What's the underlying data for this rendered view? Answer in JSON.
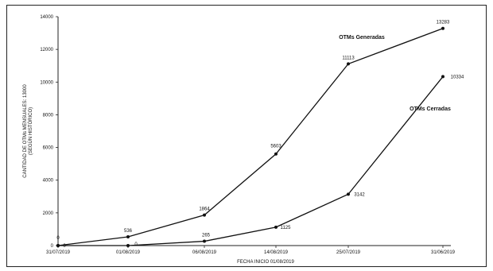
{
  "chart_data": {
    "type": "line",
    "title": "",
    "xlabel": "FECHA INICIO 01/08/2019",
    "ylabel_lines": [
      "CANTIDAD DE OTMs MENSUALES: 13000",
      "(SEGÚN HISTÓRICO)"
    ],
    "categories": [
      "31/07/2019",
      "01/08/2019",
      "06/08/2019",
      "14/08/2019",
      "25/07/2019",
      "31/06/2019"
    ],
    "ylim": [
      0,
      14000
    ],
    "yticks": [
      "0",
      "2000",
      "4000",
      "6000",
      "8000",
      "10000",
      "12000",
      "14000"
    ],
    "grid": false,
    "series": [
      {
        "name": "OTMs Generadas",
        "values": [
          0,
          536,
          1864,
          5603,
          11113,
          13283
        ],
        "labels": [
          "0",
          "536",
          "1864",
          "5603",
          "11113",
          "13283"
        ],
        "color": "#111111"
      },
      {
        "name": "OTMs Cerradas",
        "values": [
          0,
          0,
          265,
          1125,
          3142,
          10334
        ],
        "labels": [
          "0",
          "0",
          "265",
          "1125",
          "3142",
          "10334"
        ],
        "color": "#111111"
      }
    ]
  }
}
